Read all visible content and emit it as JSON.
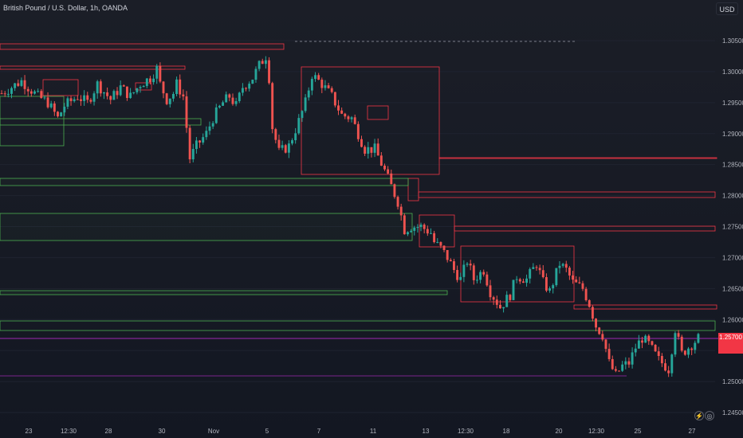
{
  "header": {
    "title": "British Pound / U.S. Dollar, 1h, OANDA",
    "currency": "USD"
  },
  "buttons": {
    "flash_icon": "⚡",
    "logo_icon": "◎"
  },
  "colors": {
    "up": "#26a69a",
    "down": "#ef5350",
    "zone_red": "#f23645",
    "zone_green": "#4caf50",
    "purple": "#9c27b0",
    "text": "#b2b5be"
  },
  "chart_data": {
    "type": "candlestick",
    "ylim": [
      1.2425,
      1.3085
    ],
    "yticks": [
      "1.30500",
      "1.30000",
      "1.29500",
      "1.29000",
      "1.28500",
      "1.28000",
      "1.27500",
      "1.27000",
      "1.26500",
      "1.26000",
      "1.25500",
      "1.25000",
      "1.24500"
    ],
    "xticks": [
      "23",
      "12:30",
      "28",
      "30",
      "Nov",
      "5",
      "7",
      "11",
      "13",
      "12:30",
      "18",
      "20",
      "12:30",
      "25",
      "27"
    ],
    "last_price": "1.25700",
    "close_path": [
      [
        0,
        1.2965
      ],
      [
        6,
        1.2985
      ],
      [
        11,
        1.296
      ],
      [
        14,
        1.295
      ],
      [
        17,
        1.2925
      ],
      [
        19,
        1.2945
      ],
      [
        23,
        1.296
      ],
      [
        26,
        1.295
      ],
      [
        29,
        1.298
      ],
      [
        33,
        1.2955
      ],
      [
        36,
        1.2975
      ],
      [
        39,
        1.296
      ],
      [
        42,
        1.298
      ],
      [
        45,
        1.299
      ],
      [
        47,
        1.3005
      ],
      [
        48,
        1.298
      ],
      [
        50,
        1.2955
      ],
      [
        52,
        1.2965
      ],
      [
        53,
        1.298
      ],
      [
        55,
        1.296
      ],
      [
        57,
        1.286
      ],
      [
        59,
        1.288
      ],
      [
        62,
        1.29
      ],
      [
        64,
        1.2925
      ],
      [
        67,
        1.295
      ],
      [
        69,
        1.296
      ],
      [
        71,
        1.2945
      ],
      [
        73,
        1.2975
      ],
      [
        76,
        1.299
      ],
      [
        78,
        1.301
      ],
      [
        80,
        1.3025
      ],
      [
        81,
        1.299
      ],
      [
        82,
        1.291
      ],
      [
        84,
        1.287
      ],
      [
        87,
        1.288
      ],
      [
        90,
        1.292
      ],
      [
        92,
        1.295
      ],
      [
        94,
        1.2995
      ],
      [
        97,
        1.298
      ],
      [
        100,
        1.296
      ],
      [
        103,
        1.293
      ],
      [
        106,
        1.2925
      ],
      [
        108,
        1.29
      ],
      [
        110,
        1.2875
      ],
      [
        113,
        1.2875
      ],
      [
        116,
        1.284
      ],
      [
        118,
        1.2815
      ],
      [
        120,
        1.279
      ],
      [
        122,
        1.2745
      ],
      [
        124,
        1.275
      ],
      [
        127,
        1.275
      ],
      [
        130,
        1.274
      ],
      [
        131,
        1.2725
      ],
      [
        133,
        1.2715
      ],
      [
        135,
        1.27
      ],
      [
        137,
        1.268
      ],
      [
        139,
        1.2665
      ],
      [
        141,
        1.2695
      ],
      [
        143,
        1.2665
      ],
      [
        146,
        1.268
      ],
      [
        148,
        1.2645
      ],
      [
        151,
        1.262
      ],
      [
        154,
        1.264
      ],
      [
        156,
        1.267
      ],
      [
        159,
        1.2665
      ],
      [
        162,
        1.269
      ],
      [
        164,
        1.266
      ],
      [
        166,
        1.2645
      ],
      [
        169,
        1.269
      ],
      [
        171,
        1.268
      ],
      [
        173,
        1.266
      ],
      [
        176,
        1.265
      ],
      [
        178,
        1.2625
      ],
      [
        180,
        1.259
      ],
      [
        182,
        1.2575
      ],
      [
        184,
        1.253
      ],
      [
        186,
        1.251
      ],
      [
        188,
        1.2525
      ],
      [
        190,
        1.253
      ],
      [
        192,
        1.2555
      ],
      [
        194,
        1.257
      ],
      [
        196,
        1.256
      ],
      [
        199,
        1.2535
      ],
      [
        202,
        1.252
      ],
      [
        204,
        1.2585
      ],
      [
        206,
        1.2545
      ],
      [
        208,
        1.2555
      ],
      [
        211,
        1.257
      ]
    ]
  }
}
